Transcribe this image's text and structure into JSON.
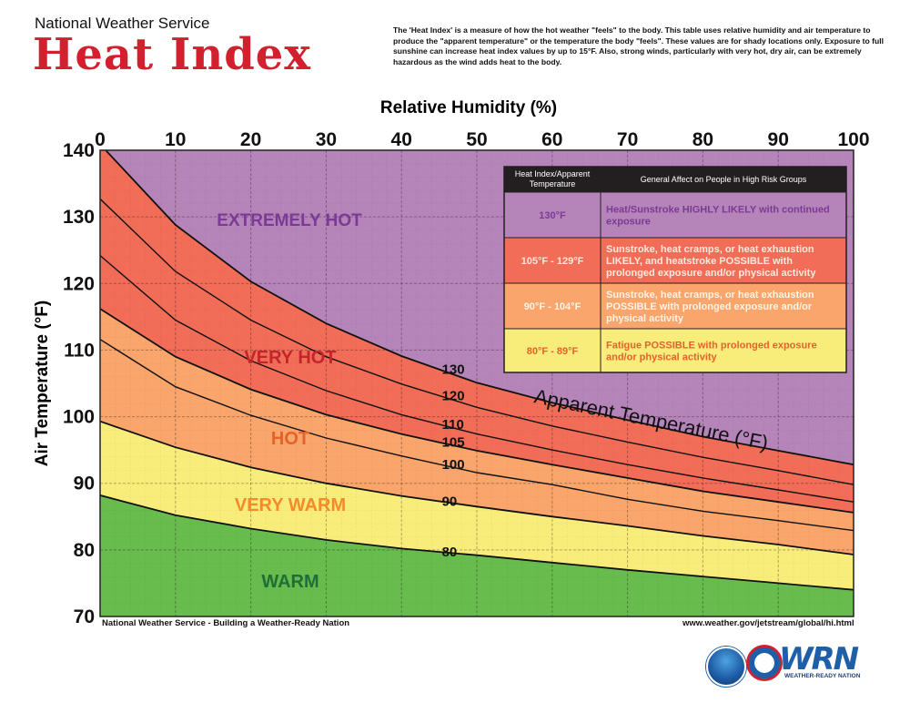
{
  "header": {
    "agency": "National Weather Service",
    "title": "Heat Index",
    "description": "The 'Heat Index' is a measure of how the hot weather \"feels\" to the body. This table uses relative humidity and air temperature to produce the \"apparent temperature\" or the temperature the body \"feels\". These values are for shady locations only. Exposure to full sunshine can increase heat index values by up to 15°F. Also, strong winds, particularly with very hot, dry air, can be extremely hazardous as the wind adds heat to the body."
  },
  "chart_data": {
    "type": "area",
    "xlabel": "Relative Humidity (%)",
    "ylabel": "Air Temperature (°F)",
    "xlim": [
      0,
      100
    ],
    "ylim": [
      70,
      140
    ],
    "x_ticks": [
      "0",
      "10",
      "20",
      "30",
      "40",
      "50",
      "60",
      "70",
      "80",
      "90",
      "100"
    ],
    "y_ticks": [
      "140",
      "130",
      "120",
      "110",
      "100",
      "90",
      "80",
      "70"
    ],
    "grid": true,
    "curve_title": "Apparent Temperature (°F)",
    "curves": [
      {
        "name": "80",
        "points": [
          [
            0,
            88.2
          ],
          [
            10,
            85.2
          ],
          [
            20,
            83.2
          ],
          [
            30,
            81.5
          ],
          [
            40,
            80.2
          ],
          [
            50,
            79.2
          ],
          [
            60,
            78.1
          ],
          [
            70,
            77.0
          ],
          [
            80,
            76.0
          ],
          [
            90,
            75.0
          ],
          [
            100,
            74.0
          ]
        ]
      },
      {
        "name": "90",
        "points": [
          [
            0,
            99.3
          ],
          [
            10,
            95.4
          ],
          [
            20,
            92.4
          ],
          [
            30,
            90.0
          ],
          [
            40,
            88.1
          ],
          [
            50,
            86.5
          ],
          [
            60,
            85.0
          ],
          [
            70,
            83.6
          ],
          [
            80,
            82.1
          ],
          [
            90,
            80.8
          ],
          [
            100,
            79.3
          ]
        ]
      },
      {
        "name": "100",
        "points": [
          [
            0,
            111.6
          ],
          [
            10,
            104.5
          ],
          [
            20,
            100.2
          ],
          [
            30,
            96.8
          ],
          [
            40,
            94.1
          ],
          [
            50,
            91.6
          ],
          [
            60,
            89.8
          ],
          [
            70,
            87.6
          ],
          [
            80,
            85.8
          ],
          [
            90,
            84.4
          ],
          [
            100,
            82.9
          ]
        ]
      },
      {
        "name": "105",
        "points": [
          [
            0,
            116.2
          ],
          [
            10,
            109.0
          ],
          [
            20,
            104.1
          ],
          [
            30,
            100.3
          ],
          [
            40,
            97.4
          ],
          [
            50,
            94.9
          ],
          [
            60,
            92.8
          ],
          [
            70,
            90.8
          ],
          [
            80,
            88.8
          ],
          [
            90,
            87.2
          ],
          [
            100,
            85.6
          ]
        ]
      },
      {
        "name": "110",
        "points": [
          [
            0,
            124.2
          ],
          [
            10,
            114.5
          ],
          [
            20,
            108.4
          ],
          [
            30,
            103.9
          ],
          [
            40,
            100.3
          ],
          [
            50,
            97.4
          ],
          [
            60,
            95.0
          ],
          [
            70,
            92.8
          ],
          [
            80,
            90.8
          ],
          [
            90,
            89.0
          ],
          [
            100,
            87.2
          ]
        ]
      },
      {
        "name": "120",
        "points": [
          [
            0,
            132.7
          ],
          [
            10,
            121.8
          ],
          [
            20,
            114.5
          ],
          [
            30,
            109.0
          ],
          [
            40,
            104.9
          ],
          [
            50,
            101.4
          ],
          [
            60,
            98.6
          ],
          [
            70,
            96.2
          ],
          [
            80,
            93.9
          ],
          [
            90,
            91.9
          ],
          [
            100,
            89.8
          ]
        ]
      },
      {
        "name": "130",
        "points": [
          [
            0,
            140.9
          ],
          [
            10,
            128.8
          ],
          [
            20,
            120.3
          ],
          [
            30,
            114.0
          ],
          [
            40,
            109.1
          ],
          [
            50,
            105.1
          ],
          [
            60,
            102.1
          ],
          [
            70,
            99.5
          ],
          [
            80,
            97.0
          ],
          [
            90,
            94.9
          ],
          [
            100,
            92.8
          ]
        ]
      }
    ],
    "zones": [
      {
        "label": "EXTREMELY HOT",
        "color": "#b584b8",
        "text_color": "#7b3a96",
        "above_curve": "130"
      },
      {
        "label": "VERY HOT",
        "color": "#f26d57",
        "text_color": "#c4252c",
        "above_curve": "105"
      },
      {
        "label": "HOT",
        "color": "#f9a56c",
        "text_color": "#e4622b",
        "above_curve": "90"
      },
      {
        "label": "VERY WARM",
        "color": "#f8ec7b",
        "text_color": "#f58a2b",
        "above_curve": "80"
      },
      {
        "label": "WARM",
        "color": "#68bb4d",
        "text_color": "#1f6e37",
        "above_curve": null
      }
    ]
  },
  "legend_table": {
    "headers": [
      "Heat Index/Apparent Temperature",
      "General Affect on People in High Risk Groups"
    ],
    "rows": [
      {
        "range": "130°F",
        "effect": "Heat/Sunstroke HIGHLY LIKELY with continued exposure",
        "color": "#b584b8",
        "text_color": "#7b3a96"
      },
      {
        "range": "105°F - 129°F",
        "effect": "Sunstroke, heat cramps, or heat exhaustion LIKELY, and heatstroke POSSIBLE with prolonged exposure and/or physical activity",
        "color": "#f26d57",
        "text_color": "#ffe9dd"
      },
      {
        "range": "90°F - 104°F",
        "effect": "Sunstroke, heat cramps, or heat exhaustion POSSIBLE with prolonged exposure and/or physical activity",
        "color": "#f9a56c",
        "text_color": "#fff4e6"
      },
      {
        "range": "80°F - 89°F",
        "effect": "Fatigue POSSIBLE with prolonged exposure and/or physical activity",
        "color": "#f8ec7b",
        "text_color": "#e4622b"
      }
    ]
  },
  "footer": {
    "left": "National Weather Service - Building a Weather-Ready Nation",
    "right": "www.weather.gov/jetstream/global/hi.html",
    "logo_wrn": "WRN",
    "logo_wrn_sub": "WEATHER-READY NATION"
  }
}
